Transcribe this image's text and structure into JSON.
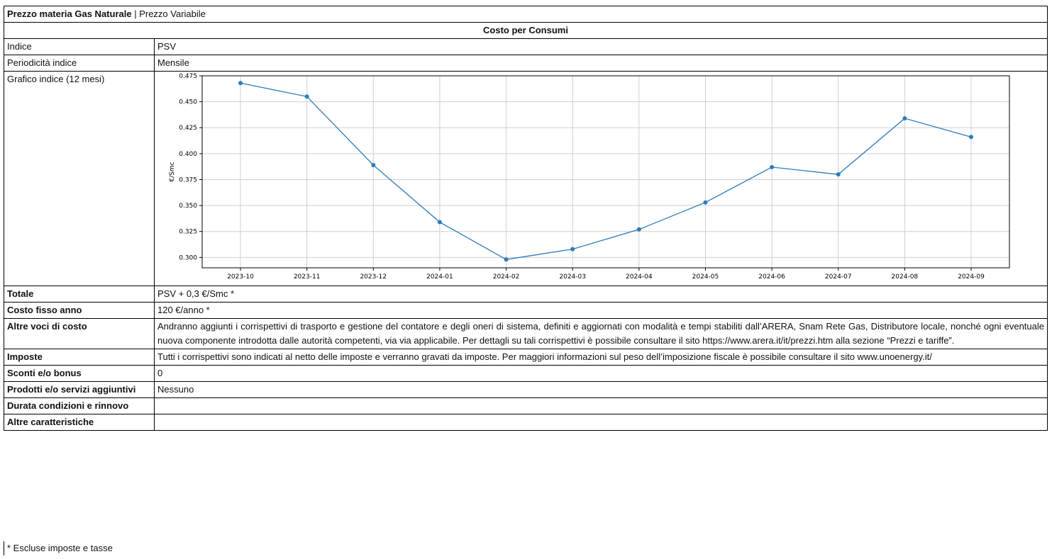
{
  "header": {
    "title_bold": "Prezzo materia Gas Naturale",
    "title_sep": " | ",
    "title_rest": "Prezzo Variabile"
  },
  "section": {
    "title": "Costo per Consumi"
  },
  "rows": {
    "indice": {
      "label": "Indice",
      "value": "PSV"
    },
    "periodicita": {
      "label": "Periodicità indice",
      "value": "Mensile"
    },
    "grafico": {
      "label": "Grafico indice (12 mesi)"
    },
    "totale": {
      "label": "Totale",
      "value": "PSV + 0,3 €/Smc *"
    },
    "costo_fisso": {
      "label": "Costo fisso anno",
      "value": "120 €/anno *"
    },
    "altre_voci": {
      "label": "Altre voci di costo",
      "value": "Andranno aggiunti i corrispettivi di trasporto e gestione del contatore e degli oneri di sistema, definiti e aggiornati con modalità e tempi stabiliti dall’ARERA, Snam Rete Gas, Distributore locale, nonché ogni eventuale nuova componente introdotta dalle autorità competenti, via via applicabile. Per dettagli su tali corrispettivi è possibile consultare il sito https://www.arera.it/it/prezzi.htm alla sezione “Prezzi e tariffe”."
    },
    "imposte": {
      "label": "Imposte",
      "value": "Tutti i corrispettivi sono indicati al netto delle imposte e verranno gravati da imposte. Per maggiori informazioni sul peso dell’imposizione fiscale è possibile consultare il sito www.unoenergy.it/"
    },
    "sconti": {
      "label": "Sconti e/o bonus",
      "value": "0"
    },
    "prodotti": {
      "label": "Prodotti e/o servizi aggiuntivi",
      "value": "Nessuno"
    },
    "durata": {
      "label": "Durata condizioni e rinnovo",
      "value": ""
    },
    "altre_caratteristiche": {
      "label": "Altre caratteristiche",
      "value": ""
    }
  },
  "footnote": "* Escluse imposte e tasse",
  "chart_data": {
    "type": "line",
    "title": "",
    "xlabel": "",
    "ylabel": "€/Smc",
    "categories": [
      "2023-10",
      "2023-11",
      "2023-12",
      "2024-01",
      "2024-02",
      "2024-03",
      "2024-04",
      "2024-05",
      "2024-06",
      "2024-07",
      "2024-08",
      "2024-09"
    ],
    "values": [
      0.468,
      0.455,
      0.389,
      0.334,
      0.298,
      0.308,
      0.327,
      0.353,
      0.387,
      0.38,
      0.434,
      0.416
    ],
    "ylim": [
      0.29,
      0.475
    ],
    "yticks": [
      "0.300",
      "0.325",
      "0.350",
      "0.375",
      "0.400",
      "0.425",
      "0.450",
      "0.475"
    ],
    "grid": true,
    "color": "#2b7bba"
  }
}
